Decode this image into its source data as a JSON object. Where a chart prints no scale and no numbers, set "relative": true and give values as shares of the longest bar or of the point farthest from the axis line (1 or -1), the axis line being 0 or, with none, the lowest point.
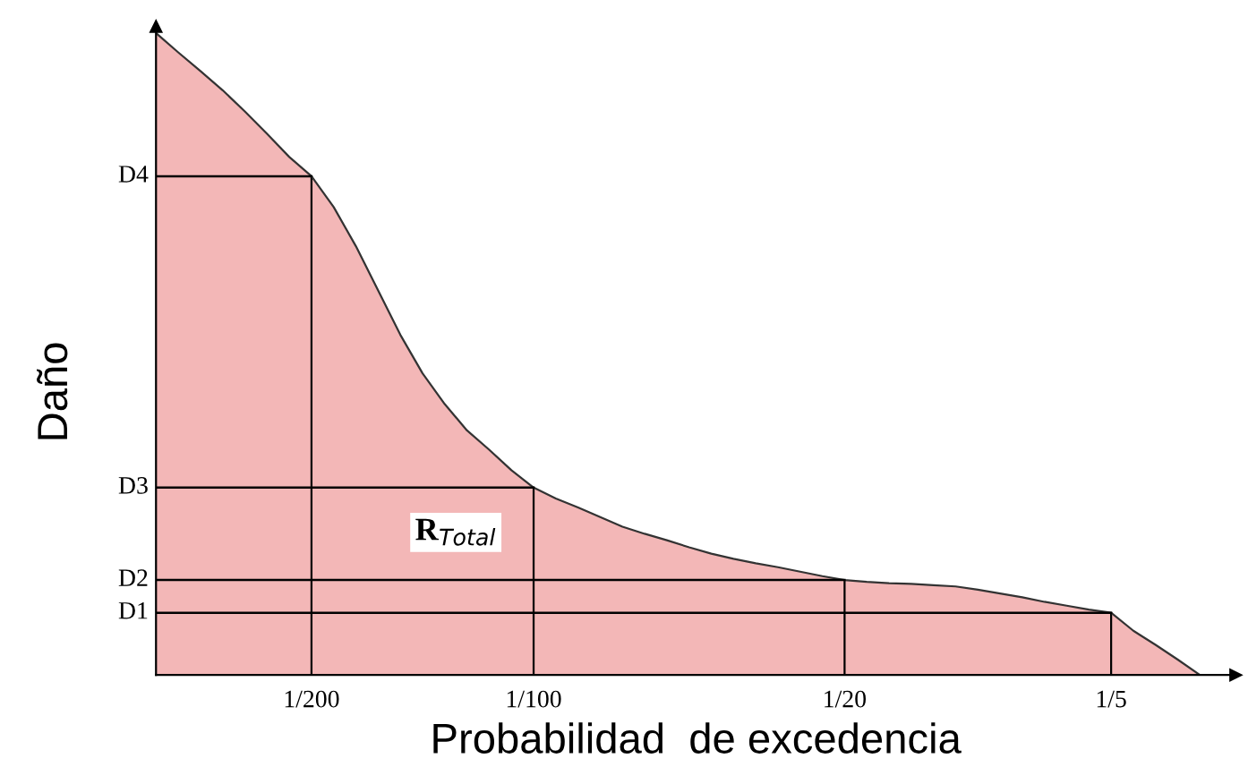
{
  "chart_data": {
    "type": "area",
    "xlabel": "Probabilidad  de excedencia",
    "ylabel": "Daño",
    "relative": true,
    "grid": false,
    "categories": [
      null,
      null,
      null,
      null,
      null,
      null,
      null,
      "1/200",
      null,
      null,
      null,
      null,
      null,
      null,
      null,
      null,
      null,
      "1/100",
      null,
      null,
      null,
      null,
      null,
      null,
      null,
      null,
      null,
      null,
      null,
      null,
      null,
      "1/20",
      null,
      null,
      null,
      null,
      null,
      null,
      null,
      null,
      null,
      null,
      null,
      "1/5",
      null,
      null,
      null,
      null
    ],
    "annotations": [
      "R$_{Total}$"
    ],
    "series": [
      {
        "color": "#f3b7b7",
        "values": [
          1.0,
          0.97,
          0.941,
          0.911,
          0.878,
          0.843,
          0.807,
          0.777,
          0.729,
          0.668,
          0.599,
          0.53,
          0.47,
          0.422,
          0.381,
          0.351,
          0.319,
          0.292,
          0.275,
          0.261,
          0.246,
          0.231,
          0.22,
          0.21,
          0.199,
          0.189,
          0.181,
          0.174,
          0.168,
          0.161,
          0.154,
          0.148,
          0.145,
          0.143,
          0.142,
          0.14,
          0.138,
          0.133,
          0.127,
          0.121,
          0.114,
          0.108,
          0.102,
          0.097,
          0.069,
          0.047,
          0.024,
          0
        ]
      },
      {
        "type": "bar",
        "color": "#000000",
        "values": [
          null,
          null,
          null,
          null,
          null,
          null,
          null,
          0.777,
          null,
          null,
          null,
          null,
          null,
          null,
          null,
          null,
          null,
          0.292,
          null,
          null,
          null,
          null,
          null,
          null,
          null,
          null,
          null,
          null,
          null,
          null,
          null,
          0.148,
          null,
          null,
          null,
          null,
          null,
          null,
          null,
          null,
          null,
          null,
          null,
          0.097,
          null,
          null,
          null,
          null
        ]
      },
      {
        "type": "line",
        "name": "D4",
        "color": "#000000",
        "values": [
          0.777,
          0.777,
          0.777,
          0.777,
          0.777,
          0.777,
          0.777,
          0.777,
          null,
          null,
          null,
          null,
          null,
          null,
          null,
          null,
          null,
          null,
          null,
          null,
          null,
          null,
          null,
          null,
          null,
          null,
          null,
          null,
          null,
          null,
          null,
          null,
          null,
          null,
          null,
          null,
          null,
          null,
          null,
          null,
          null,
          null,
          null,
          null,
          null,
          null,
          null,
          null
        ]
      },
      {
        "type": "line",
        "name": "D3",
        "color": "#000000",
        "values": [
          0.292,
          0.292,
          0.292,
          0.292,
          0.292,
          0.292,
          0.292,
          0.292,
          0.292,
          0.292,
          0.292,
          0.292,
          0.292,
          0.292,
          0.292,
          0.292,
          0.292,
          0.292,
          null,
          null,
          null,
          null,
          null,
          null,
          null,
          null,
          null,
          null,
          null,
          null,
          null,
          null,
          null,
          null,
          null,
          null,
          null,
          null,
          null,
          null,
          null,
          null,
          null,
          null,
          null,
          null,
          null,
          null
        ]
      },
      {
        "type": "line",
        "name": "D2",
        "color": "#000000",
        "values": [
          0.148,
          0.148,
          0.148,
          0.148,
          0.148,
          0.148,
          0.148,
          0.148,
          0.148,
          0.148,
          0.148,
          0.148,
          0.148,
          0.148,
          0.148,
          0.148,
          0.148,
          0.148,
          0.148,
          0.148,
          0.148,
          0.148,
          0.148,
          0.148,
          0.148,
          0.148,
          0.148,
          0.148,
          0.148,
          0.148,
          0.148,
          0.148,
          null,
          null,
          null,
          null,
          null,
          null,
          null,
          null,
          null,
          null,
          null,
          null,
          null,
          null,
          null,
          null
        ]
      },
      {
        "type": "line",
        "name": "D1",
        "color": "#000000",
        "values": [
          0.097,
          0.097,
          0.097,
          0.097,
          0.097,
          0.097,
          0.097,
          0.097,
          0.097,
          0.097,
          0.097,
          0.097,
          0.097,
          0.097,
          0.097,
          0.097,
          0.097,
          0.097,
          0.097,
          0.097,
          0.097,
          0.097,
          0.097,
          0.097,
          0.097,
          0.097,
          0.097,
          0.097,
          0.097,
          0.097,
          0.097,
          0.097,
          0.097,
          0.097,
          0.097,
          0.097,
          0.097,
          0.097,
          0.097,
          0.097,
          0.097,
          0.097,
          0.097,
          0.097,
          null,
          null,
          null,
          null
        ]
      }
    ]
  }
}
